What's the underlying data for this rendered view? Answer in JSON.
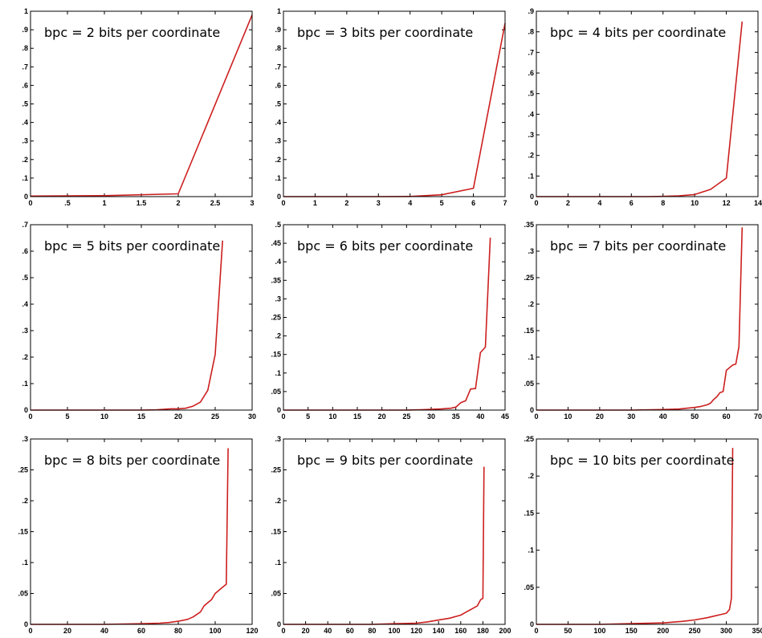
{
  "chart_data": [
    {
      "type": "line",
      "annotation": "bpc = 2 bits per coordinate",
      "xlim": [
        0,
        3
      ],
      "ylim": [
        0,
        1
      ],
      "xticks": [
        0,
        0.5,
        1,
        1.5,
        2,
        2.5,
        3
      ],
      "yticks": [
        0,
        0.1,
        0.2,
        0.3,
        0.4,
        0.5,
        0.6,
        0.7,
        0.8,
        0.9,
        1
      ],
      "color": "#cc1f1f",
      "x": [
        0,
        1,
        2,
        3
      ],
      "y": [
        0.003,
        0.005,
        0.015,
        0.98
      ]
    },
    {
      "type": "line",
      "annotation": "bpc = 3 bits per coordinate",
      "xlim": [
        0,
        7
      ],
      "ylim": [
        0,
        1
      ],
      "xticks": [
        0,
        1,
        2,
        3,
        4,
        5,
        6,
        7
      ],
      "yticks": [
        0,
        0.1,
        0.2,
        0.3,
        0.4,
        0.5,
        0.6,
        0.7,
        0.8,
        0.9,
        1
      ],
      "color": "#cc1f1f",
      "x": [
        0,
        1,
        2,
        3,
        4,
        5,
        6,
        7
      ],
      "y": [
        0,
        0,
        0,
        0,
        0.001,
        0.01,
        0.045,
        0.935
      ]
    },
    {
      "type": "line",
      "annotation": "bpc = 4 bits per coordinate",
      "xlim": [
        0,
        14
      ],
      "ylim": [
        0,
        0.9
      ],
      "xticks": [
        0,
        2,
        4,
        6,
        8,
        10,
        12,
        14
      ],
      "yticks": [
        0,
        0.1,
        0.2,
        0.3,
        0.4,
        0.5,
        0.6,
        0.7,
        0.8,
        0.9
      ],
      "color": "#cc1f1f",
      "x": [
        0,
        1,
        2,
        3,
        4,
        5,
        6,
        7,
        8,
        9,
        10,
        11,
        12,
        13
      ],
      "y": [
        0,
        0,
        0,
        0,
        0,
        0,
        0,
        0,
        0.001,
        0.004,
        0.01,
        0.035,
        0.09,
        0.85
      ]
    },
    {
      "type": "line",
      "annotation": "bpc = 5 bits per coordinate",
      "xlim": [
        0,
        30
      ],
      "ylim": [
        0,
        0.7
      ],
      "xticks": [
        0,
        5,
        10,
        15,
        20,
        25,
        30
      ],
      "yticks": [
        0,
        0.1,
        0.2,
        0.3,
        0.4,
        0.5,
        0.6,
        0.7
      ],
      "color": "#cc1f1f",
      "x": [
        0,
        5,
        10,
        15,
        17,
        18,
        19,
        20,
        21,
        22,
        23,
        24,
        25,
        26
      ],
      "y": [
        0,
        0,
        0,
        0,
        0.001,
        0.003,
        0.005,
        0.005,
        0.007,
        0.015,
        0.03,
        0.075,
        0.21,
        0.64
      ]
    },
    {
      "type": "line",
      "annotation": "bpc = 6 bits per coordinate",
      "xlim": [
        0,
        45
      ],
      "ylim": [
        0,
        0.5
      ],
      "xticks": [
        0,
        5,
        10,
        15,
        20,
        25,
        30,
        35,
        40,
        45
      ],
      "yticks": [
        0,
        0.05,
        0.1,
        0.15,
        0.2,
        0.25,
        0.3,
        0.35,
        0.4,
        0.45,
        0.5
      ],
      "color": "#cc1f1f",
      "x": [
        0,
        5,
        10,
        15,
        20,
        25,
        28,
        30,
        32,
        34,
        35,
        36,
        37,
        38,
        39,
        40,
        41,
        42
      ],
      "y": [
        0,
        0,
        0,
        0,
        0,
        0,
        0.001,
        0.002,
        0.003,
        0.005,
        0.008,
        0.02,
        0.025,
        0.057,
        0.058,
        0.155,
        0.17,
        0.465
      ]
    },
    {
      "type": "line",
      "annotation": "bpc = 7 bits per coordinate",
      "xlim": [
        0,
        70
      ],
      "ylim": [
        0,
        0.35
      ],
      "xticks": [
        0,
        10,
        20,
        30,
        40,
        50,
        60,
        70
      ],
      "yticks": [
        0,
        0.05,
        0.1,
        0.15,
        0.2,
        0.25,
        0.3,
        0.35
      ],
      "color": "#cc1f1f",
      "x": [
        0,
        10,
        20,
        30,
        40,
        45,
        50,
        52,
        54,
        55,
        56,
        57,
        58,
        59,
        60,
        61,
        62,
        63,
        64,
        65
      ],
      "y": [
        0,
        0,
        0,
        0,
        0.001,
        0.002,
        0.005,
        0.007,
        0.01,
        0.013,
        0.02,
        0.025,
        0.033,
        0.035,
        0.075,
        0.08,
        0.085,
        0.087,
        0.12,
        0.345
      ]
    },
    {
      "type": "line",
      "annotation": "bpc = 8 bits per coordinate",
      "xlim": [
        0,
        120
      ],
      "ylim": [
        0,
        0.3
      ],
      "xticks": [
        0,
        20,
        40,
        60,
        80,
        100,
        120
      ],
      "yticks": [
        0,
        0.05,
        0.1,
        0.15,
        0.2,
        0.25,
        0.3
      ],
      "color": "#cc1f1f",
      "x": [
        0,
        20,
        40,
        60,
        70,
        75,
        80,
        85,
        88,
        90,
        92,
        94,
        96,
        98,
        100,
        102,
        104,
        106,
        107
      ],
      "y": [
        0,
        0,
        0,
        0.001,
        0.002,
        0.003,
        0.005,
        0.008,
        0.012,
        0.016,
        0.02,
        0.03,
        0.035,
        0.04,
        0.05,
        0.055,
        0.06,
        0.065,
        0.285
      ]
    },
    {
      "type": "line",
      "annotation": "bpc = 9 bits per coordinate",
      "xlim": [
        0,
        200
      ],
      "ylim": [
        0,
        0.3
      ],
      "xticks": [
        0,
        20,
        40,
        60,
        80,
        100,
        120,
        140,
        160,
        180,
        200
      ],
      "yticks": [
        0,
        0.05,
        0.1,
        0.15,
        0.2,
        0.25,
        0.3
      ],
      "color": "#cc1f1f",
      "x": [
        0,
        40,
        80,
        100,
        120,
        130,
        140,
        150,
        160,
        165,
        170,
        175,
        178,
        180,
        181
      ],
      "y": [
        0,
        0,
        0,
        0.001,
        0.002,
        0.004,
        0.007,
        0.01,
        0.015,
        0.02,
        0.025,
        0.03,
        0.04,
        0.042,
        0.255
      ]
    },
    {
      "type": "line",
      "annotation": "bpc = 10 bits per coordinate",
      "xlim": [
        0,
        350
      ],
      "ylim": [
        0,
        0.25
      ],
      "xticks": [
        0,
        50,
        100,
        150,
        200,
        250,
        300,
        350
      ],
      "yticks": [
        0,
        0.05,
        0.1,
        0.15,
        0.2,
        0.25
      ],
      "color": "#cc1f1f",
      "x": [
        0,
        100,
        150,
        200,
        230,
        250,
        270,
        280,
        290,
        300,
        305,
        308,
        310
      ],
      "y": [
        0,
        0,
        0.001,
        0.002,
        0.004,
        0.006,
        0.009,
        0.011,
        0.013,
        0.015,
        0.02,
        0.035,
        0.238
      ]
    }
  ]
}
